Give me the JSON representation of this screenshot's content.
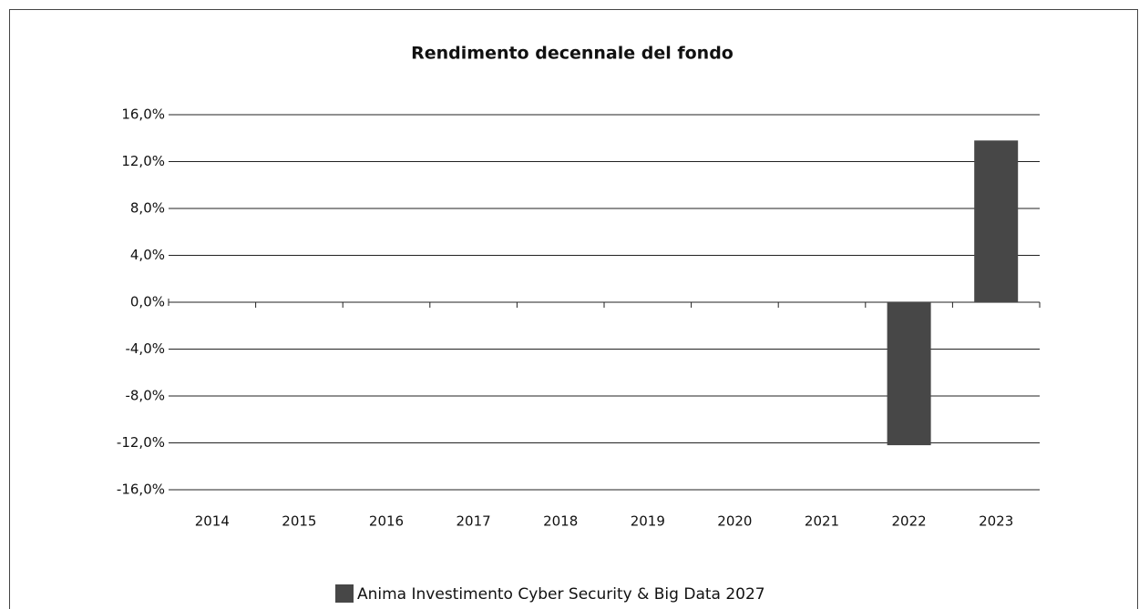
{
  "chart_data": {
    "type": "bar",
    "title": "Rendimento decennale del fondo",
    "categories": [
      "2014",
      "2015",
      "2016",
      "2017",
      "2018",
      "2019",
      "2020",
      "2021",
      "2022",
      "2023"
    ],
    "series": [
      {
        "name": "Anima Investimento Cyber Security & Big Data 2027",
        "color": "#474747",
        "values": [
          null,
          null,
          null,
          null,
          null,
          null,
          null,
          null,
          -12.2,
          13.8
        ]
      }
    ],
    "ylim": [
      -16,
      16
    ],
    "yticks": [
      {
        "value": 16,
        "label": "16,0%"
      },
      {
        "value": 12,
        "label": "12,0%"
      },
      {
        "value": 8,
        "label": "8,0%"
      },
      {
        "value": 4,
        "label": "4,0%"
      },
      {
        "value": 0,
        "label": "0,0%"
      },
      {
        "value": -4,
        "label": "-4,0%"
      },
      {
        "value": -8,
        "label": "-8,0%"
      },
      {
        "value": -12,
        "label": "-12,0%"
      },
      {
        "value": -16,
        "label": "-16,0%"
      }
    ],
    "grid": true,
    "legend": "bottom"
  }
}
